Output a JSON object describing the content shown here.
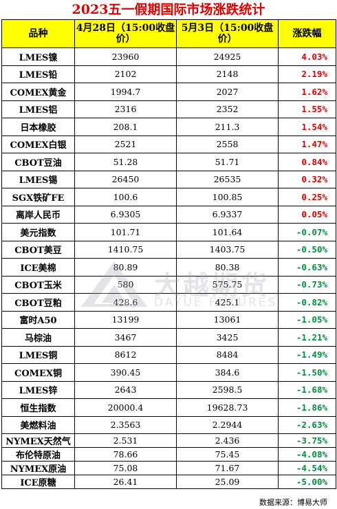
{
  "title": "2023五一假期国际市场涨跌统计",
  "headers": {
    "variety": "品种",
    "apr28": "4月28日（15:00收盘价）",
    "may3": "5月3日（15:00收盘价）",
    "change": "涨跌幅"
  },
  "rows": [
    {
      "name": "LMES镍",
      "apr28": "23960",
      "may3": "24925",
      "change": "4.03%",
      "dir": "up"
    },
    {
      "name": "LMES铅",
      "apr28": "2102",
      "may3": "2148",
      "change": "2.19%",
      "dir": "up"
    },
    {
      "name": "COMEX黄金",
      "apr28": "1994.7",
      "may3": "2027",
      "change": "1.62%",
      "dir": "up"
    },
    {
      "name": "LMES铝",
      "apr28": "2316",
      "may3": "2352",
      "change": "1.55%",
      "dir": "up"
    },
    {
      "name": "日本橡胶",
      "apr28": "208.1",
      "may3": "211.3",
      "change": "1.54%",
      "dir": "up"
    },
    {
      "name": "COMEX白银",
      "apr28": "2521",
      "may3": "2558",
      "change": "1.47%",
      "dir": "up"
    },
    {
      "name": "CBOT豆油",
      "apr28": "51.28",
      "may3": "51.71",
      "change": "0.84%",
      "dir": "up"
    },
    {
      "name": "LMES锡",
      "apr28": "26450",
      "may3": "26535",
      "change": "0.32%",
      "dir": "up"
    },
    {
      "name": "SGX铁矿FE",
      "apr28": "100.6",
      "may3": "100.85",
      "change": "0.25%",
      "dir": "up"
    },
    {
      "name": "离岸人民币",
      "apr28": "6.9305",
      "may3": "6.9337",
      "change": "0.05%",
      "dir": "up"
    },
    {
      "name": "美元指数",
      "apr28": "101.71",
      "may3": "101.64",
      "change": "-0.07%",
      "dir": "down"
    },
    {
      "name": "CBOT美豆",
      "apr28": "1410.75",
      "may3": "1403.75",
      "change": "-0.50%",
      "dir": "down"
    },
    {
      "name": "ICE美棉",
      "apr28": "80.89",
      "may3": "80.38",
      "change": "-0.63%",
      "dir": "down"
    },
    {
      "name": "CBOT玉米",
      "apr28": "580",
      "may3": "575.75",
      "change": "-0.73%",
      "dir": "down"
    },
    {
      "name": "CBOT豆粕",
      "apr28": "428.6",
      "may3": "425.1",
      "change": "-0.82%",
      "dir": "down"
    },
    {
      "name": "富时A50",
      "apr28": "13199",
      "may3": "13061",
      "change": "-1.05%",
      "dir": "down"
    },
    {
      "name": "马棕油",
      "apr28": "3467",
      "may3": "3425",
      "change": "-1.21%",
      "dir": "down"
    },
    {
      "name": "LMES铜",
      "apr28": "8612",
      "may3": "8484",
      "change": "-1.49%",
      "dir": "down"
    },
    {
      "name": "COMEX铜",
      "apr28": "390.45",
      "may3": "384.6",
      "change": "-1.50%",
      "dir": "down"
    },
    {
      "name": "LMES锌",
      "apr28": "2643",
      "may3": "2598.5",
      "change": "-1.68%",
      "dir": "down"
    },
    {
      "name": "恒生指数",
      "apr28": "20000.4",
      "may3": "19628.73",
      "change": "-1.86%",
      "dir": "down"
    },
    {
      "name": "美燃料油",
      "apr28": "2.3563",
      "may3": "2.2944",
      "change": "-2.63%",
      "dir": "down"
    },
    {
      "name": "NYMEX天然气",
      "apr28": "2.531",
      "may3": "2.436",
      "change": "-3.75%",
      "dir": "down"
    },
    {
      "name": "布伦特原油",
      "apr28": "78.66",
      "may3": "75.45",
      "change": "-4.08%",
      "dir": "down"
    },
    {
      "name": "NYMEX原油",
      "apr28": "75.08",
      "may3": "71.67",
      "change": "-4.54%",
      "dir": "down"
    },
    {
      "name": "ICE原糖",
      "apr28": "26.41",
      "may3": "25.09",
      "change": "-5.00%",
      "dir": "down"
    }
  ],
  "watermark": {
    "cn": "大越期货",
    "en": "DAYUE FUTURES"
  },
  "source": "数据来源：博易大师",
  "colors": {
    "up": "#e00000",
    "down": "#008f3c",
    "header_bg": "#ffff00"
  }
}
